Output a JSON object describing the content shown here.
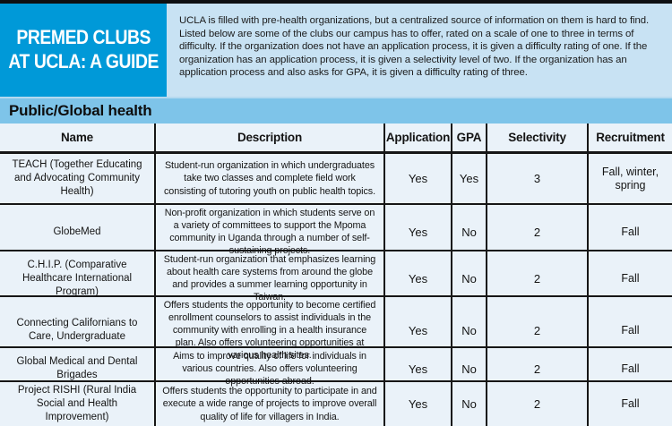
{
  "colors": {
    "brand_blue": "#0099d8",
    "intro_light_blue": "#c8e2f3",
    "section_band_blue": "#7ec4e9",
    "table_background": "#eaf2f9",
    "grid_line": "#161616"
  },
  "masthead": {
    "title_line1": "PREMED CLUBS",
    "title_line2": "AT UCLA: A GUIDE",
    "intro": "UCLA is filled with pre-health organizations, but a centralized source of information on them is hard to find. Listed below are some of the clubs our campus has to offer, rated on a scale of one to three in terms of difficulty. If the organization does not have an application process, it is given a difficulty rating of one. If the organization has an application process, it is given a selectivity level of two. If the organization has an application process and also asks for GPA, it is given a difficulty rating of three."
  },
  "section": {
    "title": "Public/Global health"
  },
  "table": {
    "columns": [
      "Name",
      "Description",
      "Application",
      "GPA",
      "Selectivity",
      "Recruitment"
    ],
    "rows": [
      {
        "name": "TEACH (Together Educating and Advocating Community Health)",
        "description": "Student-run organization in which undergraduates take two classes and complete field work consisting of tutoring youth on public health topics.",
        "application": "Yes",
        "gpa": "Yes",
        "selectivity": "3",
        "recruitment": "Fall, winter, spring"
      },
      {
        "name": "GlobeMed",
        "description": "Non-profit organization in which students serve on a variety of committees to support the Mpoma community in Uganda through a number of self-sustaining projects.",
        "application": "Yes",
        "gpa": "No",
        "selectivity": "2",
        "recruitment": "Fall"
      },
      {
        "name": "C.H.I.P. (Comparative Healthcare International Program)",
        "description": "Student-run organization that emphasizes learning about health care systems from around the globe and provides a summer learning opportunity in Taiwan.",
        "application": "Yes",
        "gpa": "No",
        "selectivity": "2",
        "recruitment": "Fall"
      },
      {
        "name": "Connecting Californians to Care, Undergraduate",
        "description": "Offers students the opportunity to become certified enrollment counselors to assist individuals in the community with enrolling in a health insurance plan. Also offers volunteering opportunities at various health sites.",
        "application": "Yes",
        "gpa": "No",
        "selectivity": "2",
        "recruitment": "Fall"
      },
      {
        "name": "Global Medical and Dental Brigades",
        "description": "Aims to improve quality of life for individuals in various countries. Also offers volunteering opportunities abroad.",
        "application": "Yes",
        "gpa": "No",
        "selectivity": "2",
        "recruitment": "Fall"
      },
      {
        "name": "Project RISHI (Rural India Social and Health Improvement)",
        "description": "Offers students the opportunity to participate in and execute a wide range of projects to improve overall quality of life for villagers in India.",
        "application": "Yes",
        "gpa": "No",
        "selectivity": "2",
        "recruitment": "Fall"
      }
    ]
  }
}
